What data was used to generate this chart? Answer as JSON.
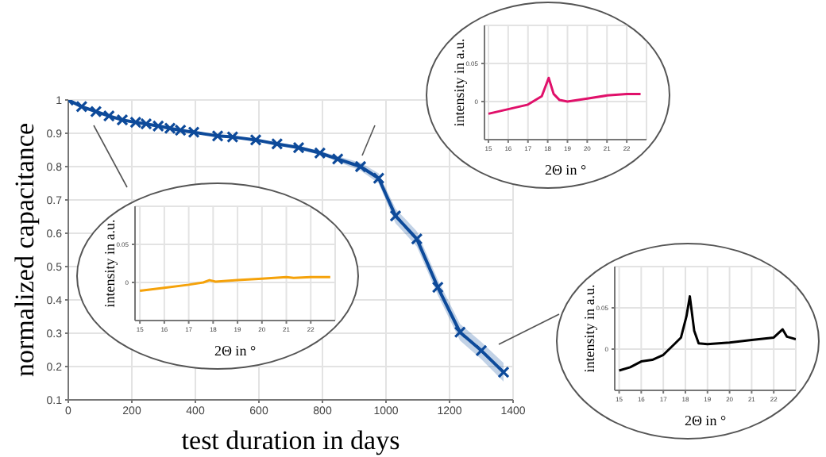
{
  "chart_data": [
    {
      "type": "line",
      "xlabel": "test duration in days",
      "ylabel": "normalized capacitance",
      "x": [
        0,
        42,
        87,
        128,
        170,
        212,
        245,
        283,
        320,
        353,
        395,
        470,
        517,
        590,
        657,
        725,
        792,
        848,
        920,
        977,
        1030,
        1097,
        1163,
        1233,
        1300,
        1370
      ],
      "series": [
        {
          "color": "#0d4a9a",
          "values": [
            1.0,
            0.98,
            0.965,
            0.952,
            0.94,
            0.933,
            0.928,
            0.922,
            0.915,
            0.909,
            0.903,
            0.892,
            0.889,
            0.88,
            0.868,
            0.857,
            0.841,
            0.823,
            0.8,
            0.765,
            0.652,
            0.583,
            0.438,
            0.303,
            0.248,
            0.183
          ],
          "lower": [
            1.0,
            0.978,
            0.963,
            0.95,
            0.938,
            0.931,
            0.926,
            0.92,
            0.913,
            0.907,
            0.9,
            0.889,
            0.886,
            0.877,
            0.864,
            0.852,
            0.835,
            0.815,
            0.788,
            0.75,
            0.63,
            0.56,
            0.415,
            0.278,
            0.222,
            0.155
          ],
          "upper": [
            1.0,
            0.982,
            0.967,
            0.954,
            0.942,
            0.935,
            0.93,
            0.924,
            0.917,
            0.911,
            0.906,
            0.895,
            0.892,
            0.883,
            0.872,
            0.862,
            0.847,
            0.831,
            0.812,
            0.78,
            0.674,
            0.606,
            0.461,
            0.328,
            0.274,
            0.211
          ]
        }
      ],
      "xlim": [
        0,
        1400
      ],
      "xticks": [
        0,
        200,
        400,
        600,
        800,
        1000,
        1200,
        1400
      ],
      "ylim": [
        0.1,
        1
      ],
      "yticks": [
        0.1,
        0.2,
        0.3,
        0.4,
        0.5,
        0.6,
        0.7,
        0.8,
        0.9,
        1
      ],
      "grid": true,
      "marker": "cross",
      "line_style": "solid"
    },
    {
      "type": "line",
      "xlabel": "2Θ in °",
      "ylabel": "intensity in a.u.",
      "series": [
        {
          "color": "#e0106a",
          "x": [
            15,
            17,
            17.7,
            18.05,
            18.3,
            18.6,
            19,
            20,
            21,
            22,
            22.7
          ],
          "values": [
            -0.016,
            -0.004,
            0.007,
            0.031,
            0.01,
            0.002,
            0.0,
            0.004,
            0.008,
            0.01,
            0.01
          ]
        }
      ],
      "xlim": [
        14.8,
        23
      ],
      "xticks": [
        15,
        16,
        17,
        18,
        19,
        20,
        21,
        22
      ],
      "ylim": [
        -0.05,
        0.1
      ],
      "yticks": [
        0,
        0.05
      ],
      "grid": true,
      "marker": "none",
      "line_style": "solid"
    },
    {
      "type": "line",
      "xlabel": "2Θ in °",
      "ylabel": "intensity in a.u.",
      "series": [
        {
          "color": "#f5a20a",
          "x": [
            15,
            16,
            17,
            17.6,
            17.85,
            18.1,
            19,
            20,
            21,
            21.3,
            22,
            22.8
          ],
          "values": [
            -0.011,
            -0.007,
            -0.003,
            0.0,
            0.003,
            0.001,
            0.003,
            0.005,
            0.007,
            0.006,
            0.007,
            0.007
          ]
        }
      ],
      "xlim": [
        14.8,
        23
      ],
      "xticks": [
        15,
        16,
        17,
        18,
        19,
        20,
        21,
        22
      ],
      "ylim": [
        -0.05,
        0.1
      ],
      "yticks": [
        0,
        0.05
      ],
      "grid": true,
      "marker": "none",
      "line_style": "solid"
    },
    {
      "type": "line",
      "xlabel": "2Θ in °",
      "ylabel": "intensity in a.u.",
      "series": [
        {
          "color": "#000000",
          "x": [
            15,
            15.5,
            16,
            16.5,
            17,
            17.5,
            17.8,
            18.05,
            18.2,
            18.4,
            18.6,
            19,
            20,
            21,
            22,
            22.4,
            22.6,
            23
          ],
          "values": [
            -0.026,
            -0.022,
            -0.015,
            -0.013,
            -0.007,
            0.006,
            0.014,
            0.04,
            0.064,
            0.022,
            0.007,
            0.006,
            0.008,
            0.011,
            0.014,
            0.024,
            0.015,
            0.012
          ]
        }
      ],
      "xlim": [
        14.8,
        23
      ],
      "xticks": [
        15,
        16,
        17,
        18,
        19,
        20,
        21,
        22
      ],
      "ylim": [
        -0.05,
        0.1
      ],
      "yticks": [
        0,
        0.05
      ],
      "grid": true,
      "marker": "none",
      "line_style": "solid"
    }
  ]
}
